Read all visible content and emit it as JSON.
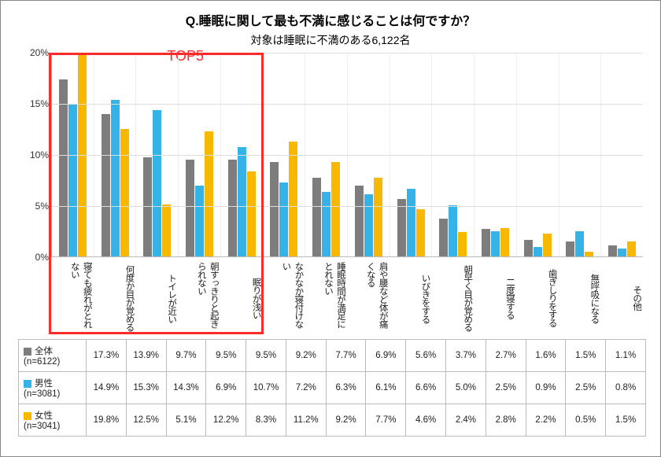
{
  "title": "Q.睡眠に関して最も不満に感じることは何ですか？",
  "subtitle": "対象は睡眠に不満のある6,122名",
  "top5_label": "TOP5",
  "chart": {
    "type": "bar",
    "ymax": 20,
    "ytick_step": 5,
    "ytick_suffix": "%",
    "categories": [
      "寝ても疲れがとれない",
      "何度か目が覚める",
      "トイレが近い",
      "朝すっきりと起きられない",
      "眠りが浅い",
      "なかなか寝付けない",
      "睡眠時間が満足にとれない",
      "肩や腰など体が痛くなる",
      "いびきをする",
      "朝早く目が覚める",
      "二度寝する",
      "歯ぎしりをする",
      "無呼吸になる",
      "その他"
    ],
    "series": [
      {
        "name": "全体",
        "n": "6122",
        "color": "#7d7d7d",
        "values": [
          17.3,
          13.9,
          9.7,
          9.5,
          9.5,
          9.2,
          7.7,
          6.9,
          5.6,
          3.7,
          2.7,
          1.6,
          1.5,
          1.1
        ]
      },
      {
        "name": "男性",
        "n": "3081",
        "color": "#35b3e6",
        "values": [
          14.9,
          15.3,
          14.3,
          6.9,
          10.7,
          7.2,
          6.3,
          6.1,
          6.6,
          5.0,
          2.5,
          0.9,
          2.5,
          0.8
        ]
      },
      {
        "name": "女性",
        "n": "3041",
        "color": "#f9b800",
        "values": [
          19.8,
          12.5,
          5.1,
          12.2,
          8.3,
          11.2,
          9.2,
          7.7,
          4.6,
          2.4,
          2.8,
          2.2,
          0.5,
          1.5
        ]
      }
    ],
    "background_color": "#ffffff",
    "grid_color": "#dddddd",
    "top5_box_color": "#ff2a2a",
    "top5_range": [
      0,
      4
    ]
  }
}
